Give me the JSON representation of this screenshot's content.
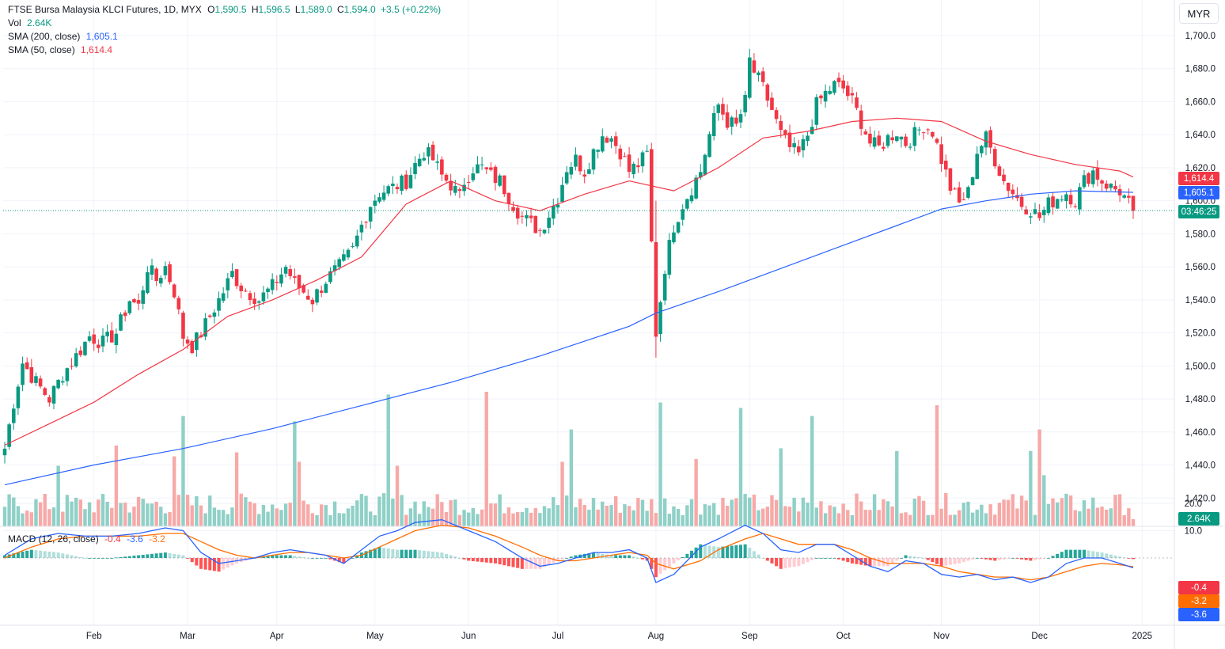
{
  "header": {
    "symbol": "FTSE Bursa Malaysia KLCI Futures",
    "interval": "1D",
    "exchange": "MYX",
    "open_label": "O",
    "open": "1,590.5",
    "high_label": "H",
    "high": "1,596.5",
    "low_label": "L",
    "low": "1,589.0",
    "close_label": "C",
    "close": "1,594.0",
    "change": "+3.5 (+0.22%)",
    "vol_label": "Vol",
    "vol_value": "2.64K",
    "sma200_label": "SMA (200, close)",
    "sma200_value": "1,605.1",
    "sma50_label": "SMA (50, close)",
    "sma50_value": "1,614.4"
  },
  "currency_button": "MYR",
  "price_tags": {
    "sma50": "1,614.4",
    "sma200": "1,605.1",
    "countdown": "03:46:25",
    "volume": "2.64K"
  },
  "macd": {
    "label": "MACD (12, 26, close)",
    "hist_value": "-0.4",
    "macd_value": "-3.6",
    "signal_value": "-3.2",
    "tags": {
      "hist": "-0.4",
      "signal": "-3.2",
      "macd": "-3.6"
    }
  },
  "colors": {
    "up": "#089981",
    "down": "#f23645",
    "up_volume": "#8fd0c7",
    "down_volume": "#f7a9a7",
    "sma200": "#2962ff",
    "sma50": "#f23645",
    "macd_line": "#2962ff",
    "signal_line": "#ff6d00",
    "grid": "#f0f3fa"
  },
  "chart_data": {
    "type": "candlestick",
    "title": "FTSE Bursa Malaysia KLCI Futures, 1D, MYX",
    "y_axis": {
      "min": 1400,
      "max": 1710,
      "ticks": [
        "1,700.0",
        "1,680.0",
        "1,660.0",
        "1,640.0",
        "1,620.0",
        "1,600.0",
        "1,580.0",
        "1,560.0",
        "1,540.0",
        "1,520.0",
        "1,500.0",
        "1,480.0",
        "1,460.0",
        "1,440.0",
        "1,420.0"
      ],
      "tick_values": [
        1700,
        1680,
        1660,
        1640,
        1620,
        1600,
        1580,
        1560,
        1540,
        1520,
        1500,
        1480,
        1460,
        1440,
        1420
      ]
    },
    "x_axis": {
      "labels": [
        "Feb",
        "Mar",
        "Apr",
        "May",
        "Jun",
        "Jul",
        "Aug",
        "Sep",
        "Oct",
        "Nov",
        "Dec",
        "2025"
      ],
      "label_bar_index": [
        20,
        41,
        61,
        83,
        104,
        124,
        146,
        167,
        188,
        210,
        232,
        255
      ]
    },
    "macd_axis": {
      "min": -12,
      "max": 22,
      "ticks": [
        "20.0",
        "10.0"
      ],
      "tick_values": [
        20,
        10
      ]
    },
    "ohlc_path_closes": [
      [
        0,
        1450
      ],
      [
        2,
        1478
      ],
      [
        4,
        1502
      ],
      [
        7,
        1490
      ],
      [
        10,
        1480
      ],
      [
        13,
        1495
      ],
      [
        16,
        1506
      ],
      [
        19,
        1518
      ],
      [
        22,
        1514
      ],
      [
        25,
        1520
      ],
      [
        28,
        1540
      ],
      [
        30,
        1536
      ],
      [
        32,
        1560
      ],
      [
        34,
        1552
      ],
      [
        36,
        1560
      ],
      [
        38,
        1545
      ],
      [
        40,
        1518
      ],
      [
        42,
        1512
      ],
      [
        44,
        1520
      ],
      [
        46,
        1530
      ],
      [
        49,
        1545
      ],
      [
        51,
        1556
      ],
      [
        53,
        1548
      ],
      [
        55,
        1544
      ],
      [
        57,
        1540
      ],
      [
        60,
        1548
      ],
      [
        63,
        1560
      ],
      [
        65,
        1550
      ],
      [
        67,
        1545
      ],
      [
        69,
        1540
      ],
      [
        72,
        1552
      ],
      [
        75,
        1560
      ],
      [
        78,
        1570
      ],
      [
        80,
        1585
      ],
      [
        82,
        1598
      ],
      [
        84,
        1605
      ],
      [
        87,
        1608
      ],
      [
        90,
        1612
      ],
      [
        92,
        1622
      ],
      [
        94,
        1630
      ],
      [
        96,
        1625
      ],
      [
        98,
        1615
      ],
      [
        100,
        1610
      ],
      [
        102,
        1602
      ],
      [
        103,
        1612
      ],
      [
        105,
        1620
      ],
      [
        107,
        1620
      ],
      [
        109,
        1615
      ],
      [
        111,
        1612
      ],
      [
        114,
        1598
      ],
      [
        116,
        1590
      ],
      [
        118,
        1586
      ],
      [
        120,
        1582
      ],
      [
        122,
        1592
      ],
      [
        124,
        1602
      ],
      [
        126,
        1620
      ],
      [
        128,
        1625
      ],
      [
        130,
        1618
      ],
      [
        132,
        1630
      ],
      [
        134,
        1640
      ],
      [
        136,
        1638
      ],
      [
        138,
        1630
      ],
      [
        140,
        1618
      ],
      [
        142,
        1622
      ],
      [
        144,
        1628
      ],
      [
        146,
        1520
      ],
      [
        148,
        1560
      ],
      [
        150,
        1585
      ],
      [
        152,
        1598
      ],
      [
        154,
        1608
      ],
      [
        156,
        1618
      ],
      [
        158,
        1640
      ],
      [
        160,
        1658
      ],
      [
        162,
        1648
      ],
      [
        164,
        1645
      ],
      [
        166,
        1660
      ],
      [
        167,
        1685
      ],
      [
        168,
        1678
      ],
      [
        170,
        1668
      ],
      [
        172,
        1655
      ],
      [
        174,
        1640
      ],
      [
        176,
        1632
      ],
      [
        178,
        1628
      ],
      [
        180,
        1640
      ],
      [
        182,
        1658
      ],
      [
        184,
        1665
      ],
      [
        186,
        1670
      ],
      [
        188,
        1668
      ],
      [
        190,
        1660
      ],
      [
        192,
        1648
      ],
      [
        194,
        1635
      ],
      [
        196,
        1632
      ],
      [
        198,
        1638
      ],
      [
        200,
        1642
      ],
      [
        202,
        1635
      ],
      [
        204,
        1640
      ],
      [
        206,
        1646
      ],
      [
        208,
        1642
      ],
      [
        210,
        1625
      ],
      [
        212,
        1608
      ],
      [
        214,
        1598
      ],
      [
        216,
        1605
      ],
      [
        218,
        1630
      ],
      [
        220,
        1638
      ],
      [
        222,
        1625
      ],
      [
        224,
        1612
      ],
      [
        226,
        1605
      ],
      [
        228,
        1598
      ],
      [
        230,
        1595
      ],
      [
        232,
        1590
      ],
      [
        234,
        1598
      ],
      [
        236,
        1602
      ],
      [
        238,
        1605
      ],
      [
        240,
        1600
      ],
      [
        242,
        1612
      ],
      [
        244,
        1618
      ],
      [
        246,
        1612
      ],
      [
        248,
        1608
      ],
      [
        250,
        1606
      ],
      [
        252,
        1598
      ],
      [
        253,
        1594
      ]
    ],
    "volume_events": [
      [
        12,
        "up",
        45
      ],
      [
        25,
        "down",
        60
      ],
      [
        38,
        "down",
        52
      ],
      [
        40,
        "up",
        82
      ],
      [
        52,
        "down",
        55
      ],
      [
        65,
        "up",
        78
      ],
      [
        66,
        "down",
        48
      ],
      [
        86,
        "up",
        98
      ],
      [
        88,
        "down",
        45
      ],
      [
        108,
        "down",
        100
      ],
      [
        125,
        "down",
        48
      ],
      [
        127,
        "up",
        72
      ],
      [
        147,
        "up",
        92
      ],
      [
        155,
        "down",
        50
      ],
      [
        165,
        "up",
        88
      ],
      [
        174,
        "up",
        58
      ],
      [
        181,
        "up",
        82
      ],
      [
        200,
        "up",
        56
      ],
      [
        209,
        "down",
        90
      ],
      [
        230,
        "up",
        56
      ],
      [
        232,
        "down",
        72
      ],
      [
        233,
        "up",
        38
      ]
    ],
    "sma50_points": [
      [
        0,
        1452
      ],
      [
        10,
        1465
      ],
      [
        20,
        1478
      ],
      [
        30,
        1495
      ],
      [
        40,
        1510
      ],
      [
        50,
        1530
      ],
      [
        60,
        1540
      ],
      [
        70,
        1552
      ],
      [
        80,
        1566
      ],
      [
        90,
        1598
      ],
      [
        100,
        1612
      ],
      [
        110,
        1600
      ],
      [
        120,
        1594
      ],
      [
        130,
        1604
      ],
      [
        140,
        1612
      ],
      [
        150,
        1606
      ],
      [
        160,
        1620
      ],
      [
        170,
        1638
      ],
      [
        180,
        1642
      ],
      [
        190,
        1648
      ],
      [
        200,
        1650
      ],
      [
        210,
        1648
      ],
      [
        220,
        1636
      ],
      [
        230,
        1628
      ],
      [
        240,
        1622
      ],
      [
        250,
        1618
      ],
      [
        253,
        1614.4
      ]
    ],
    "sma200_points": [
      [
        0,
        1428
      ],
      [
        20,
        1440
      ],
      [
        40,
        1450
      ],
      [
        60,
        1462
      ],
      [
        80,
        1476
      ],
      [
        100,
        1490
      ],
      [
        120,
        1506
      ],
      [
        140,
        1524
      ],
      [
        146,
        1532
      ],
      [
        160,
        1545
      ],
      [
        170,
        1555
      ],
      [
        180,
        1565
      ],
      [
        190,
        1575
      ],
      [
        200,
        1585
      ],
      [
        210,
        1595
      ],
      [
        220,
        1600
      ],
      [
        230,
        1604
      ],
      [
        240,
        1606
      ],
      [
        253,
        1605.1
      ]
    ],
    "last_price": 1594.0,
    "series": [
      {
        "name": "SMA (200, close)",
        "last": 1605.1
      },
      {
        "name": "SMA (50, close)",
        "last": 1614.4
      },
      {
        "name": "Vol",
        "last": "2.64K"
      }
    ],
    "macd_points": [
      [
        0,
        1
      ],
      [
        6,
        7
      ],
      [
        12,
        9
      ],
      [
        18,
        8
      ],
      [
        24,
        8
      ],
      [
        30,
        9
      ],
      [
        36,
        11
      ],
      [
        40,
        10
      ],
      [
        44,
        2
      ],
      [
        48,
        -2
      ],
      [
        52,
        -1
      ],
      [
        56,
        0
      ],
      [
        60,
        2
      ],
      [
        64,
        3
      ],
      [
        68,
        2
      ],
      [
        72,
        1
      ],
      [
        76,
        -2
      ],
      [
        80,
        3
      ],
      [
        84,
        8
      ],
      [
        88,
        10
      ],
      [
        92,
        13
      ],
      [
        98,
        14
      ],
      [
        104,
        10
      ],
      [
        110,
        6
      ],
      [
        116,
        0
      ],
      [
        120,
        -3
      ],
      [
        124,
        -2
      ],
      [
        128,
        0
      ],
      [
        132,
        2
      ],
      [
        136,
        2
      ],
      [
        140,
        3
      ],
      [
        144,
        0
      ],
      [
        146,
        -9
      ],
      [
        150,
        -6
      ],
      [
        156,
        4
      ],
      [
        160,
        7
      ],
      [
        166,
        12
      ],
      [
        170,
        9
      ],
      [
        174,
        3
      ],
      [
        178,
        2
      ],
      [
        182,
        5
      ],
      [
        186,
        5
      ],
      [
        190,
        1
      ],
      [
        194,
        -3
      ],
      [
        198,
        -5
      ],
      [
        202,
        -1
      ],
      [
        206,
        -2
      ],
      [
        210,
        -6
      ],
      [
        214,
        -7
      ],
      [
        218,
        -6
      ],
      [
        222,
        -8
      ],
      [
        226,
        -7
      ],
      [
        230,
        -9
      ],
      [
        234,
        -7
      ],
      [
        238,
        -2
      ],
      [
        242,
        0
      ],
      [
        246,
        0
      ],
      [
        250,
        -2
      ],
      [
        253,
        -3.6
      ]
    ],
    "signal_points": [
      [
        0,
        0
      ],
      [
        6,
        4
      ],
      [
        12,
        7
      ],
      [
        18,
        8
      ],
      [
        24,
        8
      ],
      [
        30,
        8
      ],
      [
        36,
        9
      ],
      [
        40,
        9
      ],
      [
        44,
        6
      ],
      [
        48,
        3
      ],
      [
        52,
        1
      ],
      [
        56,
        0
      ],
      [
        60,
        1
      ],
      [
        64,
        2
      ],
      [
        68,
        2
      ],
      [
        72,
        1
      ],
      [
        76,
        0
      ],
      [
        80,
        1
      ],
      [
        84,
        4
      ],
      [
        88,
        7
      ],
      [
        92,
        10
      ],
      [
        98,
        12
      ],
      [
        104,
        11
      ],
      [
        110,
        8
      ],
      [
        116,
        4
      ],
      [
        120,
        1
      ],
      [
        124,
        -1
      ],
      [
        128,
        -1
      ],
      [
        132,
        0
      ],
      [
        136,
        1
      ],
      [
        140,
        2
      ],
      [
        144,
        1
      ],
      [
        146,
        -2
      ],
      [
        150,
        -4
      ],
      [
        156,
        -1
      ],
      [
        160,
        3
      ],
      [
        166,
        7
      ],
      [
        170,
        9
      ],
      [
        174,
        7
      ],
      [
        178,
        5
      ],
      [
        182,
        5
      ],
      [
        186,
        5
      ],
      [
        190,
        3
      ],
      [
        194,
        0
      ],
      [
        198,
        -2
      ],
      [
        202,
        -2
      ],
      [
        206,
        -2
      ],
      [
        210,
        -3
      ],
      [
        214,
        -5
      ],
      [
        218,
        -6
      ],
      [
        222,
        -7
      ],
      [
        226,
        -7
      ],
      [
        230,
        -8
      ],
      [
        234,
        -7
      ],
      [
        238,
        -5
      ],
      [
        242,
        -3
      ],
      [
        246,
        -2
      ],
      [
        250,
        -2.5
      ],
      [
        253,
        -3.2
      ]
    ]
  }
}
